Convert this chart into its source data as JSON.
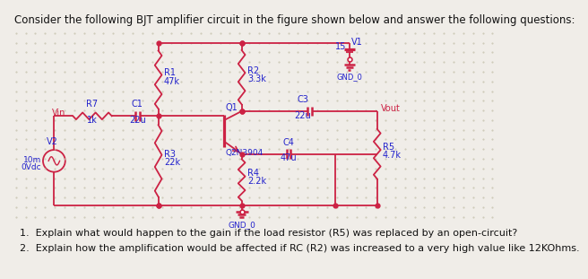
{
  "title": "Consider the following BJT amplifier circuit in the figure shown below and answer the following questions:",
  "bg_color": "#f0ede8",
  "circuit_color": "#cc2244",
  "wire_color": "#cc2244",
  "text_color": "#2222cc",
  "label_color": "#111111",
  "dot_color": "#cc2244",
  "grid_dot_color": "#c8c4b0",
  "question1": "1.  Explain what would happen to the gain if the load resistor (R5) was replaced by an open-circuit?",
  "question2": "2.  Explain how the amplification would be affected if RC (R2) was increased to a very high value like 12KOhms."
}
